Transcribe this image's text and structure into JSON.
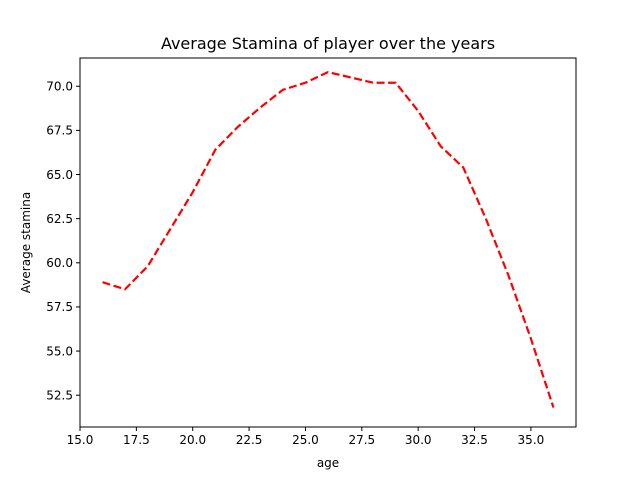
{
  "chart_data": {
    "type": "line",
    "title": "Average Stamina of player over the years",
    "xlabel": "age",
    "ylabel": "Average stamina",
    "xlim": [
      15.0,
      37.0
    ],
    "ylim": [
      50.7,
      71.6
    ],
    "xticks": [
      15.0,
      17.5,
      20.0,
      22.5,
      25.0,
      27.5,
      30.0,
      32.5,
      35.0
    ],
    "xtick_labels": [
      "15.0",
      "17.5",
      "20.0",
      "22.5",
      "25.0",
      "27.5",
      "30.0",
      "32.5",
      "35.0"
    ],
    "yticks": [
      52.5,
      55.0,
      57.5,
      60.0,
      62.5,
      65.0,
      67.5,
      70.0
    ],
    "ytick_labels": [
      "52.5",
      "55.0",
      "57.5",
      "60.0",
      "62.5",
      "65.0",
      "67.5",
      "70.0"
    ],
    "grid": false,
    "series": [
      {
        "x": [
          16,
          17,
          18,
          19,
          20,
          21,
          22,
          23,
          24,
          25,
          26,
          27,
          28,
          29,
          30,
          31,
          32,
          33,
          34,
          35,
          36
        ],
        "values": [
          58.9,
          58.5,
          59.8,
          61.9,
          64.0,
          66.4,
          67.7,
          68.8,
          69.8,
          70.2,
          70.8,
          70.5,
          70.2,
          70.2,
          68.6,
          66.6,
          65.4,
          62.5,
          59.3,
          55.7,
          51.8
        ],
        "color": "#ff0000",
        "line_style": "dashed"
      }
    ]
  }
}
